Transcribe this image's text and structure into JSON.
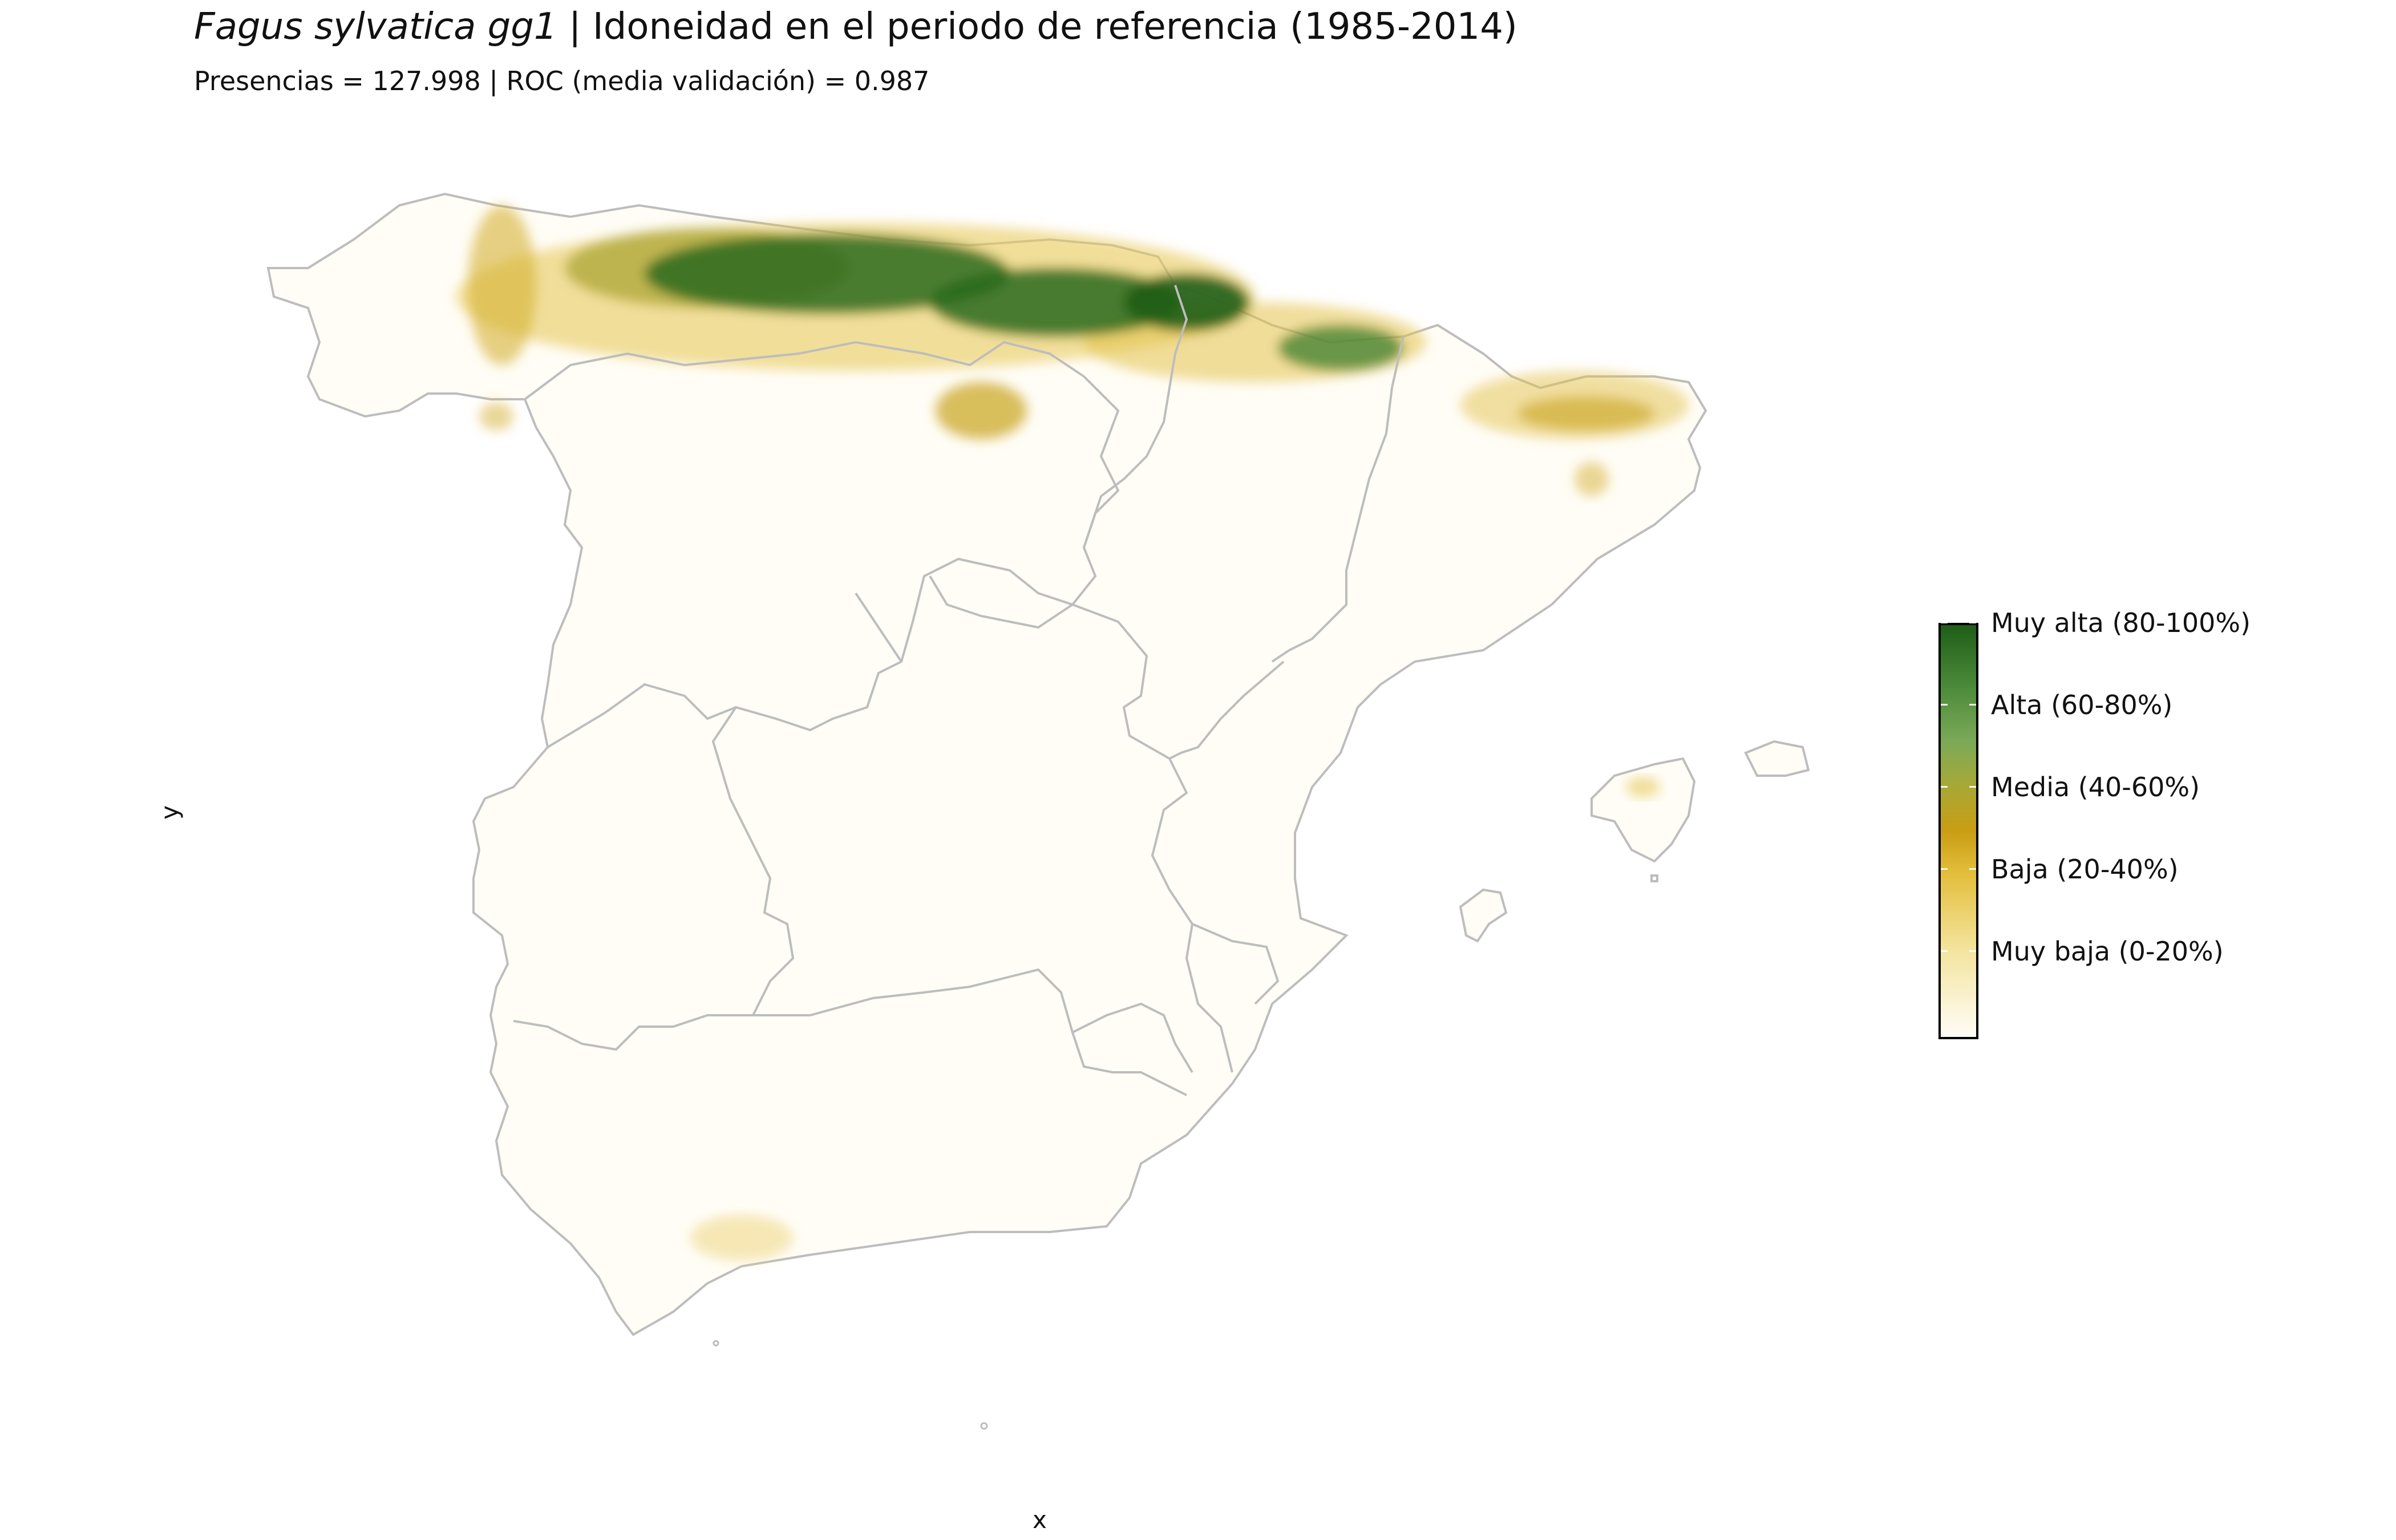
{
  "title": {
    "species": "Fagus sylvatica gg1",
    "rest": " | Idoneidad en el periodo de referencia (1985-2014)"
  },
  "subtitle": "Presencias = 127.998  |  ROC (media validación) = 0.987",
  "axes": {
    "x_label": "x",
    "y_label": "y"
  },
  "legend": {
    "items": [
      {
        "label": "Muy alta (80-100%)",
        "color": "#1e5e17"
      },
      {
        "label": "Alta (60-80%)",
        "color": "#6ea54f"
      },
      {
        "label": "Media (40-60%)",
        "color": "#a8a43a"
      },
      {
        "label": "Baja (20-40%)",
        "color": "#d4a317"
      },
      {
        "label": "Muy baja (0-20%)",
        "color": "#f3e39a"
      }
    ],
    "min_color": "#fffdf6"
  },
  "map": {
    "border_color": "#bdbdbd",
    "land_color": "#fffdf6"
  }
}
